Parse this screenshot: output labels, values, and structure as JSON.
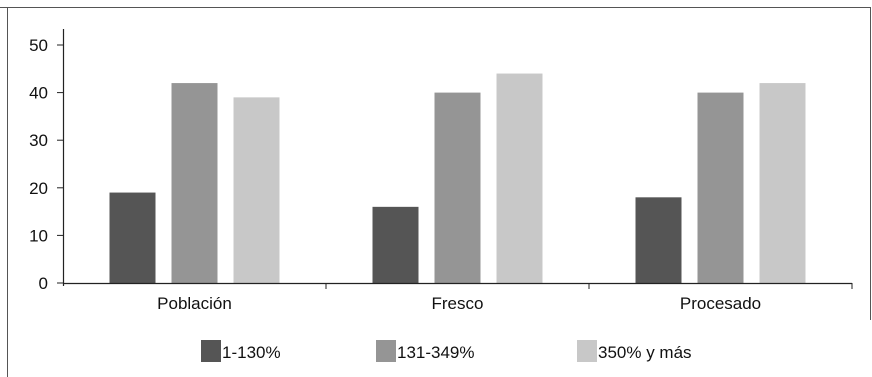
{
  "chart_data": {
    "type": "bar",
    "title": "",
    "xlabel": "",
    "ylabel": "",
    "categories": [
      "Población",
      "Fresco",
      "Procesado"
    ],
    "yticks": [
      "0",
      "10",
      "20",
      "30",
      "40",
      "50"
    ],
    "ylim": [
      0,
      50
    ],
    "grid": false,
    "legend_position": "bottom",
    "series": [
      {
        "name": "1-130%",
        "values": [
          19,
          16,
          18
        ],
        "color": "#555555"
      },
      {
        "name": "131-349%",
        "values": [
          42,
          40,
          40
        ],
        "color": "#959595"
      },
      {
        "name": "350% y más",
        "values": [
          39,
          44,
          42
        ],
        "color": "#c8c8c8"
      }
    ]
  }
}
